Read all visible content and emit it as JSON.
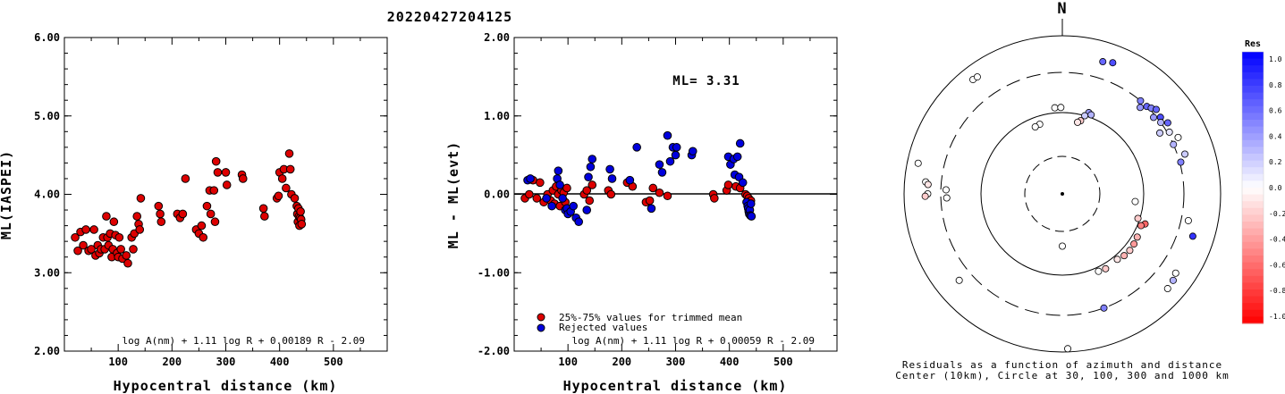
{
  "title": "20220427204125",
  "chart_data": [
    {
      "type": "scatter",
      "xlabel": "Hypocentral distance (km)",
      "ylabel": "ML(IASPEI)",
      "xlim": [
        0,
        600
      ],
      "ylim": [
        2.0,
        6.0
      ],
      "xticks": [
        "100",
        "200",
        "300",
        "400",
        "500"
      ],
      "yticks": [
        "2.00",
        "3.00",
        "4.00",
        "5.00",
        "6.00"
      ],
      "formula": "log A(nm) + 1.11 log R + 0.00189 R - 2.09",
      "series": [
        {
          "color": "#dd0000",
          "points": [
            [
              20,
              3.45
            ],
            [
              25,
              3.28
            ],
            [
              30,
              3.52
            ],
            [
              35,
              3.35
            ],
            [
              40,
              3.55
            ],
            [
              45,
              3.28
            ],
            [
              50,
              3.3
            ],
            [
              55,
              3.55
            ],
            [
              58,
              3.22
            ],
            [
              62,
              3.35
            ],
            [
              65,
              3.25
            ],
            [
              68,
              3.3
            ],
            [
              72,
              3.45
            ],
            [
              75,
              3.3
            ],
            [
              78,
              3.72
            ],
            [
              80,
              3.45
            ],
            [
              82,
              3.35
            ],
            [
              85,
              3.5
            ],
            [
              88,
              3.2
            ],
            [
              90,
              3.3
            ],
            [
              92,
              3.65
            ],
            [
              95,
              3.48
            ],
            [
              98,
              3.25
            ],
            [
              100,
              3.2
            ],
            [
              102,
              3.45
            ],
            [
              105,
              3.3
            ],
            [
              108,
              3.18
            ],
            [
              115,
              3.22
            ],
            [
              118,
              3.12
            ],
            [
              125,
              3.45
            ],
            [
              128,
              3.3
            ],
            [
              130,
              3.5
            ],
            [
              135,
              3.72
            ],
            [
              138,
              3.62
            ],
            [
              140,
              3.55
            ],
            [
              142,
              3.95
            ],
            [
              175,
              3.85
            ],
            [
              178,
              3.75
            ],
            [
              180,
              3.65
            ],
            [
              210,
              3.75
            ],
            [
              215,
              3.7
            ],
            [
              220,
              3.75
            ],
            [
              225,
              4.2
            ],
            [
              245,
              3.55
            ],
            [
              250,
              3.5
            ],
            [
              255,
              3.6
            ],
            [
              258,
              3.45
            ],
            [
              265,
              3.85
            ],
            [
              270,
              4.05
            ],
            [
              272,
              3.75
            ],
            [
              278,
              4.05
            ],
            [
              280,
              3.65
            ],
            [
              282,
              4.42
            ],
            [
              285,
              4.28
            ],
            [
              300,
              4.28
            ],
            [
              302,
              4.12
            ],
            [
              330,
              4.25
            ],
            [
              332,
              4.2
            ],
            [
              370,
              3.82
            ],
            [
              372,
              3.72
            ],
            [
              395,
              3.95
            ],
            [
              398,
              3.98
            ],
            [
              400,
              4.28
            ],
            [
              405,
              4.2
            ],
            [
              408,
              4.32
            ],
            [
              412,
              4.08
            ],
            [
              418,
              4.52
            ],
            [
              420,
              4.32
            ],
            [
              422,
              4.0
            ],
            [
              428,
              3.95
            ],
            [
              432,
              3.85
            ],
            [
              433,
              3.75
            ],
            [
              434,
              3.65
            ],
            [
              435,
              3.82
            ],
            [
              436,
              3.72
            ],
            [
              437,
              3.6
            ],
            [
              438,
              3.7
            ],
            [
              439,
              3.78
            ],
            [
              440,
              3.68
            ],
            [
              441,
              3.62
            ]
          ]
        }
      ]
    },
    {
      "type": "scatter",
      "xlabel": "Hypocentral distance (km)",
      "ylabel": "ML - ML(evt)",
      "xlim": [
        0,
        600
      ],
      "ylim": [
        -2.0,
        2.0
      ],
      "xticks": [
        "100",
        "200",
        "300",
        "400",
        "500"
      ],
      "yticks": [
        "-2.00",
        "-1.00",
        "0.00",
        "1.00",
        "2.00"
      ],
      "annotation": "ML= 3.31",
      "formula": "log A(nm) + 1.11 log R + 0.00059 R - 2.09",
      "legend": [
        "25%-75% values for trimmed mean",
        "Rejected values"
      ],
      "series": [
        {
          "name": "25%-75% values for trimmed mean",
          "color": "#dd0000",
          "points": [
            [
              20,
              -0.05
            ],
            [
              28,
              0.0
            ],
            [
              35,
              0.18
            ],
            [
              42,
              -0.05
            ],
            [
              48,
              0.15
            ],
            [
              55,
              -0.1
            ],
            [
              62,
              0.0
            ],
            [
              68,
              -0.08
            ],
            [
              72,
              0.05
            ],
            [
              75,
              -0.12
            ],
            [
              78,
              0.1
            ],
            [
              82,
              0.0
            ],
            [
              85,
              -0.15
            ],
            [
              88,
              0.05
            ],
            [
              92,
              0.02
            ],
            [
              95,
              -0.1
            ],
            [
              98,
              0.08
            ],
            [
              130,
              0.0
            ],
            [
              135,
              0.05
            ],
            [
              140,
              -0.08
            ],
            [
              145,
              0.12
            ],
            [
              175,
              0.05
            ],
            [
              180,
              0.0
            ],
            [
              210,
              0.15
            ],
            [
              220,
              0.1
            ],
            [
              245,
              -0.1
            ],
            [
              252,
              -0.08
            ],
            [
              258,
              0.08
            ],
            [
              270,
              0.02
            ],
            [
              285,
              -0.02
            ],
            [
              370,
              0.0
            ],
            [
              372,
              -0.05
            ],
            [
              395,
              0.05
            ],
            [
              398,
              0.12
            ],
            [
              412,
              0.1
            ],
            [
              420,
              0.08
            ],
            [
              430,
              0.0
            ],
            [
              433,
              -0.02
            ],
            [
              436,
              -0.05
            ],
            [
              438,
              -0.1
            ],
            [
              440,
              -0.08
            ]
          ]
        },
        {
          "name": "Rejected values",
          "color": "#0000dd",
          "points": [
            [
              25,
              0.18
            ],
            [
              30,
              0.2
            ],
            [
              60,
              -0.05
            ],
            [
              70,
              -0.15
            ],
            [
              80,
              0.2
            ],
            [
              82,
              0.3
            ],
            [
              85,
              0.12
            ],
            [
              90,
              -0.05
            ],
            [
              95,
              -0.2
            ],
            [
              98,
              -0.18
            ],
            [
              100,
              -0.25
            ],
            [
              105,
              -0.22
            ],
            [
              110,
              -0.15
            ],
            [
              115,
              -0.3
            ],
            [
              120,
              -0.35
            ],
            [
              135,
              -0.2
            ],
            [
              138,
              0.22
            ],
            [
              142,
              0.35
            ],
            [
              145,
              0.45
            ],
            [
              178,
              0.32
            ],
            [
              182,
              0.2
            ],
            [
              215,
              0.18
            ],
            [
              228,
              0.6
            ],
            [
              255,
              -0.18
            ],
            [
              270,
              0.38
            ],
            [
              275,
              0.28
            ],
            [
              285,
              0.75
            ],
            [
              290,
              0.42
            ],
            [
              295,
              0.6
            ],
            [
              300,
              0.5
            ],
            [
              302,
              0.6
            ],
            [
              330,
              0.5
            ],
            [
              332,
              0.55
            ],
            [
              398,
              0.48
            ],
            [
              402,
              0.38
            ],
            [
              408,
              0.45
            ],
            [
              410,
              0.25
            ],
            [
              415,
              0.48
            ],
            [
              418,
              0.22
            ],
            [
              420,
              0.65
            ],
            [
              425,
              0.15
            ],
            [
              432,
              -0.1
            ],
            [
              434,
              -0.15
            ],
            [
              435,
              -0.18
            ],
            [
              436,
              -0.22
            ],
            [
              437,
              -0.25
            ],
            [
              438,
              -0.2
            ],
            [
              439,
              -0.27
            ],
            [
              440,
              -0.12
            ],
            [
              441,
              -0.28
            ]
          ]
        }
      ]
    },
    {
      "type": "polar-scatter",
      "north_label": "N",
      "caption": [
        "Residuals as a function of azimuth and distance",
        "Center (10km), Circle at 30, 100, 300 and 1000 km"
      ],
      "rings_km": [
        30,
        100,
        300,
        1000
      ],
      "colorbar": {
        "title": "Res",
        "ticks": [
          "1.0",
          "0.8",
          "0.6",
          "0.4",
          "0.2",
          "0.0",
          "-0.2",
          "-0.4",
          "-0.6",
          "-0.8",
          "-1.0"
        ]
      },
      "points": [
        {
          "az": -38,
          "dist": 650,
          "res": 0.0
        },
        {
          "az": -36,
          "dist": 640,
          "res": 0.0
        },
        {
          "az": 17,
          "dist": 520,
          "res": 0.6
        },
        {
          "az": 21,
          "dist": 560,
          "res": 0.7
        },
        {
          "az": -5,
          "dist": 115,
          "res": 0.0
        },
        {
          "az": -1,
          "dist": 115,
          "res": 0.0
        },
        {
          "az": -18,
          "dist": 80,
          "res": 0.0
        },
        {
          "az": -22,
          "dist": 78,
          "res": 0.0
        },
        {
          "az": 18,
          "dist": 112,
          "res": 0.4
        },
        {
          "az": 20,
          "dist": 108,
          "res": 0.3
        },
        {
          "az": 16,
          "dist": 100,
          "res": 0.2
        },
        {
          "az": 14,
          "dist": 85,
          "res": -0.2
        },
        {
          "az": 12,
          "dist": 80,
          "res": -0.1
        },
        {
          "az": 40,
          "dist": 300,
          "res": 0.5
        },
        {
          "az": 42,
          "dist": 260,
          "res": 0.4
        },
        {
          "az": 44,
          "dist": 300,
          "res": 0.6
        },
        {
          "az": 46,
          "dist": 320,
          "res": 0.5
        },
        {
          "az": 48,
          "dist": 350,
          "res": 0.6
        },
        {
          "az": 50,
          "dist": 280,
          "res": 0.4
        },
        {
          "az": 52,
          "dist": 330,
          "res": 0.7
        },
        {
          "az": 54,
          "dist": 300,
          "res": 0.3
        },
        {
          "az": 56,
          "dist": 360,
          "res": 0.6
        },
        {
          "az": 58,
          "dist": 250,
          "res": 0.2
        },
        {
          "az": 60,
          "dist": 320,
          "res": 0.1
        },
        {
          "az": 64,
          "dist": 380,
          "res": 0.0
        },
        {
          "az": 66,
          "dist": 300,
          "res": 0.3
        },
        {
          "az": 72,
          "dist": 380,
          "res": 0.2
        },
        {
          "az": 75,
          "dist": 310,
          "res": 0.5
        },
        {
          "az": -78,
          "dist": 700,
          "res": 0.0
        },
        {
          "az": -85,
          "dist": 500,
          "res": 0.0
        },
        {
          "az": -86,
          "dist": 460,
          "res": -0.1
        },
        {
          "az": -90,
          "dist": 460,
          "res": 0.0
        },
        {
          "az": -91,
          "dist": 500,
          "res": -0.2
        },
        {
          "az": -88,
          "dist": 260,
          "res": 0.0
        },
        {
          "az": -92,
          "dist": 255,
          "res": 0.0
        },
        {
          "az": 96,
          "dist": 80,
          "res": 0.0
        },
        {
          "az": 110,
          "dist": 120,
          "res": -0.6
        },
        {
          "az": 112,
          "dist": 110,
          "res": -0.5
        },
        {
          "az": 108,
          "dist": 95,
          "res": -0.2
        },
        {
          "az": 120,
          "dist": 115,
          "res": -0.3
        },
        {
          "az": 125,
          "dist": 118,
          "res": -0.4
        },
        {
          "az": 130,
          "dist": 120,
          "res": -0.2
        },
        {
          "az": 135,
          "dist": 118,
          "res": -0.3
        },
        {
          "az": 140,
          "dist": 112,
          "res": -0.1
        },
        {
          "az": 150,
          "dist": 115,
          "res": -0.2
        },
        {
          "az": 155,
          "dist": 112,
          "res": 0.0
        },
        {
          "az": 108,
          "dist": 500,
          "res": 0.8
        },
        {
          "az": 102,
          "dist": 380,
          "res": 0.0
        },
        {
          "az": 132,
          "dist": 580,
          "res": 0.0
        },
        {
          "az": 128,
          "dist": 560,
          "res": 0.3
        },
        {
          "az": 125,
          "dist": 520,
          "res": 0.0
        },
        {
          "az": 160,
          "dist": 300,
          "res": 0.5
        },
        {
          "az": 180,
          "dist": 45,
          "res": 0.0
        },
        {
          "az": 178,
          "dist": 900,
          "res": 0.0
        },
        {
          "az": -130,
          "dist": 460,
          "res": 0.0
        }
      ]
    }
  ]
}
